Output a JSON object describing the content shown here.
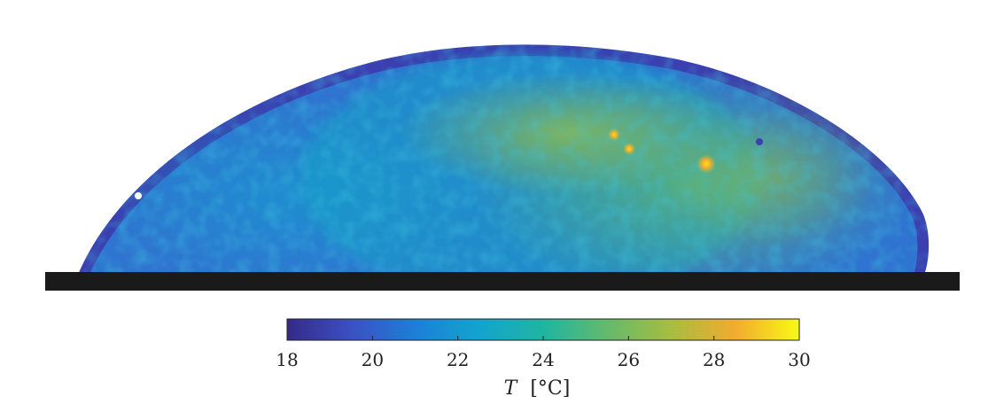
{
  "chart_data": {
    "type": "heatmap",
    "subject": "droplet temperature field",
    "colormap": "parula",
    "colors": {
      "stops": [
        "#352a87",
        "#3b50c3",
        "#1c7fd8",
        "#12a4cf",
        "#1eb5a2",
        "#64ba6b",
        "#a7bd40",
        "#f2ab2f",
        "#f9f914"
      ],
      "substrate": "#1a1a1a"
    },
    "colorbar": {
      "range": [
        18,
        30
      ],
      "ticks": [
        18,
        20,
        22,
        24,
        26,
        28,
        30
      ],
      "tick_labels": [
        "18",
        "20",
        "22",
        "24",
        "26",
        "28",
        "30"
      ],
      "label_symbol": "T",
      "label_unit": "[°C]",
      "orientation": "horizontal"
    },
    "field_summary": {
      "min_T": 18,
      "max_T": 30,
      "edge_T": 19,
      "left_region_T": 21.5,
      "center_region_T": 23.5,
      "right_region_T": 25.5,
      "hot_spots_T": [
        28.5,
        27.5,
        27
      ]
    }
  }
}
